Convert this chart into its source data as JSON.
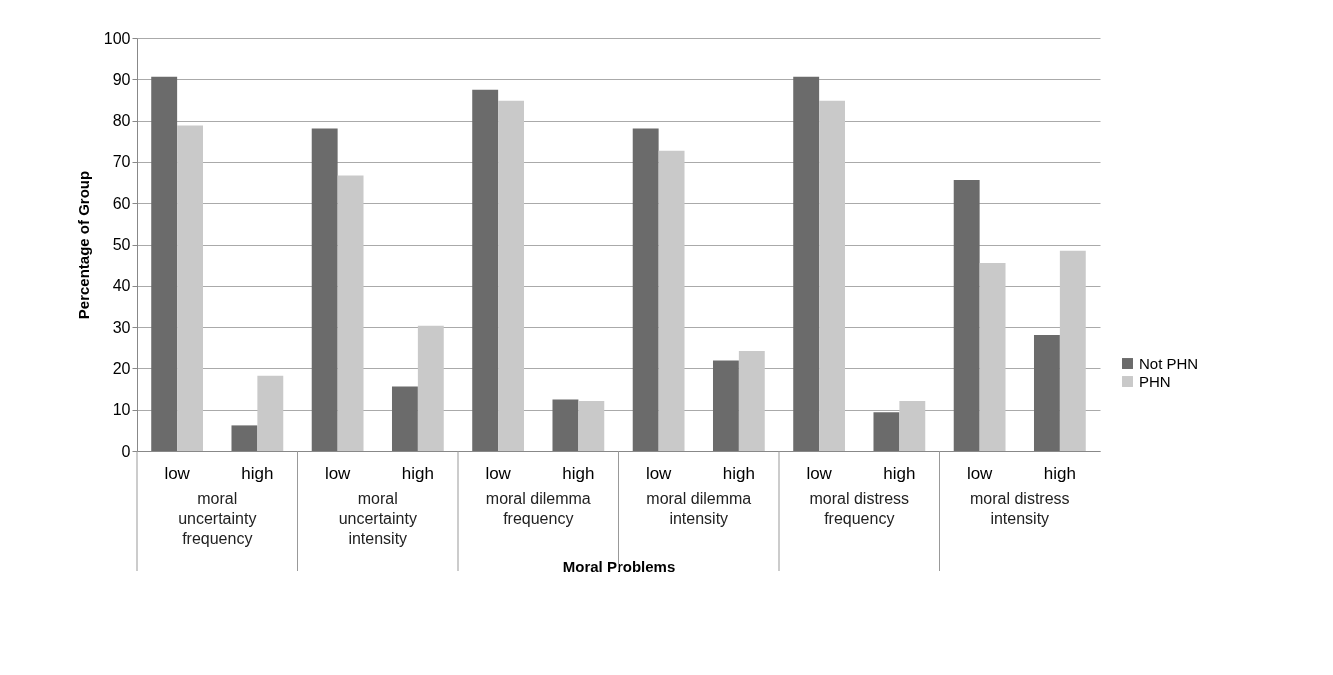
{
  "chart_data": {
    "type": "bar",
    "xlabel": "Moral Problems",
    "ylabel": "Percentage of Group",
    "categories": [
      "low",
      "high",
      "low",
      "high",
      "low",
      "high",
      "low",
      "high",
      "low",
      "high",
      "low",
      "high"
    ],
    "series": [
      {
        "name": "Not PHN",
        "color": "#6b6b6b",
        "values": [
          90.6,
          6.2,
          78.1,
          15.6,
          87.5,
          12.5,
          78.1,
          21.9,
          90.6,
          9.4,
          65.6,
          28.1
        ]
      },
      {
        "name": "PHN",
        "color": "#c9c9c9",
        "values": [
          78.8,
          18.2,
          66.7,
          30.3,
          84.8,
          12.1,
          72.7,
          24.2,
          84.8,
          12.1,
          45.5,
          48.5
        ]
      }
    ],
    "annotations": [
      "moral uncertainty frequency",
      "moral uncertainty intensity",
      "moral dilemma frequency",
      "moral dilemma intensity",
      "moral distress frequency",
      "moral distress intensity"
    ],
    "ylim": [
      0,
      100
    ],
    "yticks": [
      0,
      10,
      20,
      30,
      40,
      50,
      60,
      70,
      80,
      90,
      100
    ],
    "grid": "y",
    "legend": "right"
  }
}
